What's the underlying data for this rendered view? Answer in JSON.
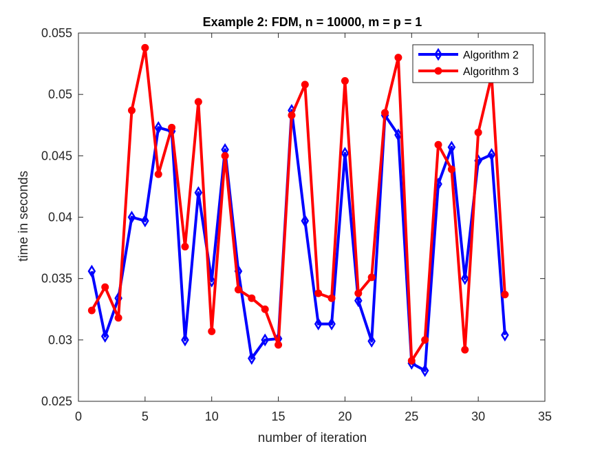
{
  "chart_data": {
    "type": "line",
    "title": "Example 2: FDM, n = 10000, m = p = 1",
    "xlabel": "number of iteration",
    "ylabel": "time in seconds",
    "xlim": [
      0,
      35
    ],
    "ylim": [
      0.025,
      0.055
    ],
    "xticks": [
      0,
      5,
      10,
      15,
      20,
      25,
      30,
      35
    ],
    "xtick_labels": [
      "0",
      "5",
      "10",
      "15",
      "20",
      "25",
      "30",
      "35"
    ],
    "yticks": [
      0.025,
      0.03,
      0.035,
      0.04,
      0.045,
      0.05,
      0.055
    ],
    "ytick_labels": [
      "0.025",
      "0.03",
      "0.035",
      "0.04",
      "0.045",
      "0.05",
      "0.055"
    ],
    "grid": false,
    "legend_position": "top-right",
    "x": [
      1,
      2,
      3,
      4,
      5,
      6,
      7,
      8,
      9,
      10,
      11,
      12,
      13,
      14,
      15,
      16,
      17,
      18,
      19,
      20,
      21,
      22,
      23,
      24,
      25,
      26,
      27,
      28,
      29,
      30,
      31,
      32
    ],
    "series": [
      {
        "name": "Algorithm 2",
        "color": "#0000ff",
        "marker": "diamond",
        "values": [
          0.0356,
          0.0303,
          0.0334,
          0.04,
          0.0397,
          0.0473,
          0.047,
          0.03,
          0.042,
          0.0348,
          0.0455,
          0.0356,
          0.0285,
          0.03,
          0.0301,
          0.0487,
          0.0397,
          0.0313,
          0.0313,
          0.0452,
          0.0332,
          0.0299,
          0.0483,
          0.0467,
          0.0281,
          0.0275,
          0.0427,
          0.0457,
          0.035,
          0.0446,
          0.0451,
          0.0304
        ]
      },
      {
        "name": "Algorithm 3",
        "color": "#ff0000",
        "marker": "circle",
        "values": [
          0.0324,
          0.0343,
          0.0318,
          0.0487,
          0.0538,
          0.0435,
          0.0473,
          0.0376,
          0.0494,
          0.0307,
          0.045,
          0.0341,
          0.0334,
          0.0325,
          0.0296,
          0.0483,
          0.0508,
          0.0338,
          0.0334,
          0.0511,
          0.0338,
          0.0351,
          0.0485,
          0.053,
          0.0283,
          0.03,
          0.0459,
          0.0439,
          0.0292,
          0.0469,
          0.0515,
          0.0337
        ]
      }
    ]
  }
}
